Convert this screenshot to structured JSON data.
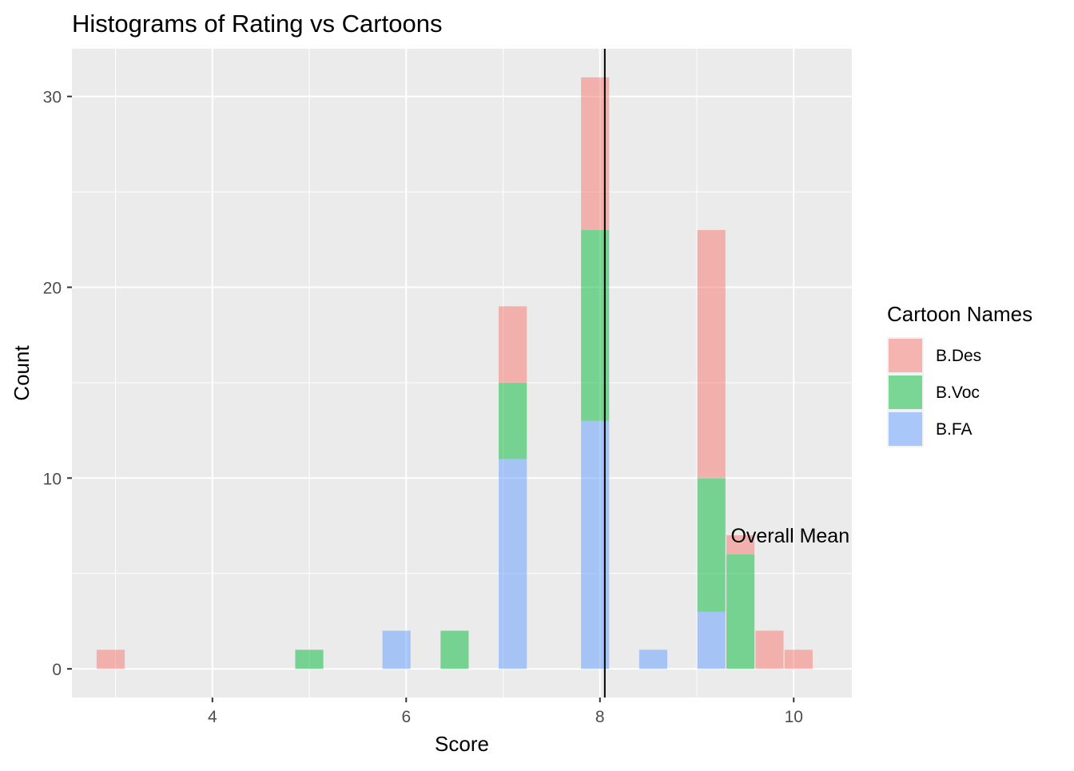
{
  "chart_data": {
    "type": "bar",
    "title": "Histograms of Rating vs Cartoons",
    "xlabel": "Score",
    "ylabel": "Count",
    "xlim": [
      2.55,
      10.6
    ],
    "ylim": [
      -1.5,
      32.5
    ],
    "x_ticks": [
      4,
      6,
      8,
      10
    ],
    "y_ticks": [
      0,
      10,
      20,
      30
    ],
    "x_tick_labels": [
      "4",
      "6",
      "8",
      "10"
    ],
    "y_tick_labels": [
      "0",
      "10",
      "20",
      "30"
    ],
    "grid": true,
    "background": "#ebebeb",
    "grid_color": "#ffffff",
    "legend": {
      "title": "Cartoon Names",
      "placement": "right"
    },
    "bins": {
      "width": 0.29,
      "centers": [
        2.95,
        5.0,
        5.9,
        6.5,
        7.1,
        7.95,
        8.55,
        9.15,
        9.45,
        9.75,
        10.05
      ]
    },
    "series": [
      {
        "name": "B.Des",
        "color": "#f8766d",
        "values": [
          1,
          0,
          0,
          0,
          4,
          8,
          0,
          13,
          1,
          2,
          1
        ]
      },
      {
        "name": "B.Voc",
        "color": "#00ba38",
        "values": [
          0,
          1,
          0,
          2,
          4,
          10,
          0,
          7,
          6,
          0,
          0
        ]
      },
      {
        "name": "B.FA",
        "color": "#619cff",
        "values": [
          0,
          0,
          2,
          0,
          11,
          13,
          1,
          3,
          0,
          0,
          0
        ]
      }
    ],
    "bar_opacity": 0.5,
    "vline": {
      "x": 8.05,
      "color": "#000000"
    },
    "annotation": {
      "text": "Overall Mean",
      "x": 9.35,
      "y": 7
    }
  }
}
